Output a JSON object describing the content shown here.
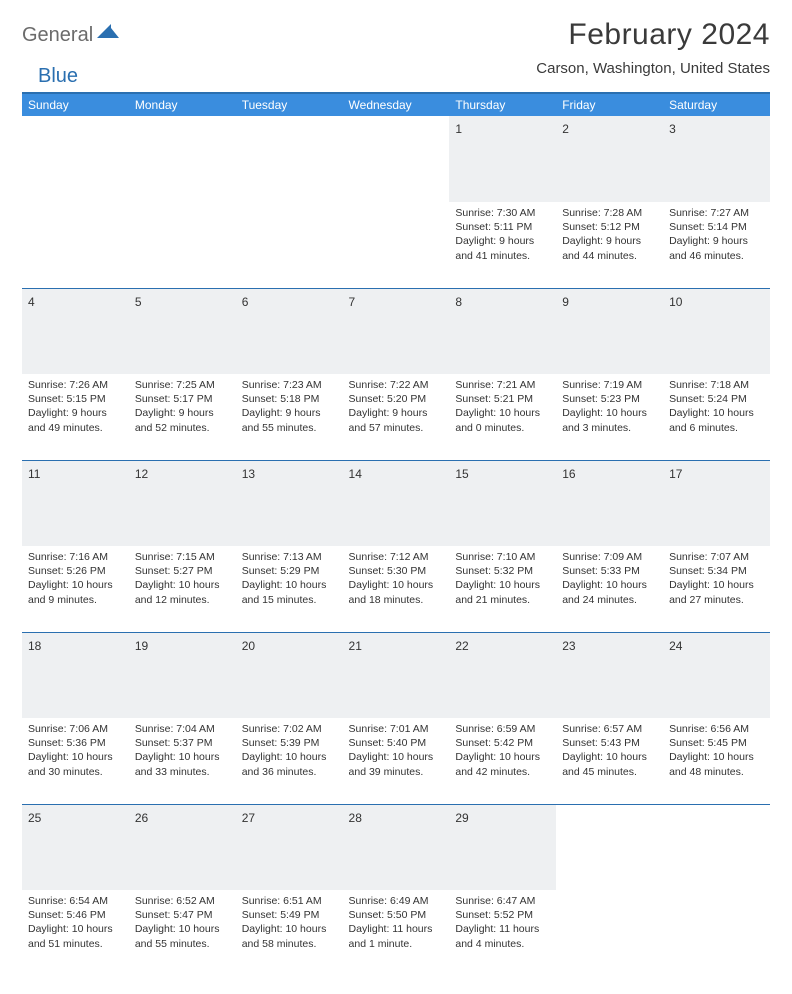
{
  "logo": {
    "general": "General",
    "blue": "Blue"
  },
  "title": "February 2024",
  "location": "Carson, Washington, United States",
  "colors": {
    "header_bg": "#3a8dde",
    "header_text": "#ffffff",
    "border": "#2a6fb0",
    "daynum_bg": "#eef0f2",
    "page_bg": "#ffffff",
    "text": "#333333",
    "logo_gray": "#6b6b6b",
    "logo_blue": "#2a6fb0"
  },
  "typography": {
    "title_fontsize": 30,
    "location_fontsize": 15,
    "header_fontsize": 12,
    "daynum_fontsize": 12,
    "body_fontsize": 10.5
  },
  "weekdays": [
    "Sunday",
    "Monday",
    "Tuesday",
    "Wednesday",
    "Thursday",
    "Friday",
    "Saturday"
  ],
  "weeks": [
    [
      null,
      null,
      null,
      null,
      {
        "n": "1",
        "sr": "Sunrise: 7:30 AM",
        "ss": "Sunset: 5:11 PM",
        "d1": "Daylight: 9 hours",
        "d2": "and 41 minutes."
      },
      {
        "n": "2",
        "sr": "Sunrise: 7:28 AM",
        "ss": "Sunset: 5:12 PM",
        "d1": "Daylight: 9 hours",
        "d2": "and 44 minutes."
      },
      {
        "n": "3",
        "sr": "Sunrise: 7:27 AM",
        "ss": "Sunset: 5:14 PM",
        "d1": "Daylight: 9 hours",
        "d2": "and 46 minutes."
      }
    ],
    [
      {
        "n": "4",
        "sr": "Sunrise: 7:26 AM",
        "ss": "Sunset: 5:15 PM",
        "d1": "Daylight: 9 hours",
        "d2": "and 49 minutes."
      },
      {
        "n": "5",
        "sr": "Sunrise: 7:25 AM",
        "ss": "Sunset: 5:17 PM",
        "d1": "Daylight: 9 hours",
        "d2": "and 52 minutes."
      },
      {
        "n": "6",
        "sr": "Sunrise: 7:23 AM",
        "ss": "Sunset: 5:18 PM",
        "d1": "Daylight: 9 hours",
        "d2": "and 55 minutes."
      },
      {
        "n": "7",
        "sr": "Sunrise: 7:22 AM",
        "ss": "Sunset: 5:20 PM",
        "d1": "Daylight: 9 hours",
        "d2": "and 57 minutes."
      },
      {
        "n": "8",
        "sr": "Sunrise: 7:21 AM",
        "ss": "Sunset: 5:21 PM",
        "d1": "Daylight: 10 hours",
        "d2": "and 0 minutes."
      },
      {
        "n": "9",
        "sr": "Sunrise: 7:19 AM",
        "ss": "Sunset: 5:23 PM",
        "d1": "Daylight: 10 hours",
        "d2": "and 3 minutes."
      },
      {
        "n": "10",
        "sr": "Sunrise: 7:18 AM",
        "ss": "Sunset: 5:24 PM",
        "d1": "Daylight: 10 hours",
        "d2": "and 6 minutes."
      }
    ],
    [
      {
        "n": "11",
        "sr": "Sunrise: 7:16 AM",
        "ss": "Sunset: 5:26 PM",
        "d1": "Daylight: 10 hours",
        "d2": "and 9 minutes."
      },
      {
        "n": "12",
        "sr": "Sunrise: 7:15 AM",
        "ss": "Sunset: 5:27 PM",
        "d1": "Daylight: 10 hours",
        "d2": "and 12 minutes."
      },
      {
        "n": "13",
        "sr": "Sunrise: 7:13 AM",
        "ss": "Sunset: 5:29 PM",
        "d1": "Daylight: 10 hours",
        "d2": "and 15 minutes."
      },
      {
        "n": "14",
        "sr": "Sunrise: 7:12 AM",
        "ss": "Sunset: 5:30 PM",
        "d1": "Daylight: 10 hours",
        "d2": "and 18 minutes."
      },
      {
        "n": "15",
        "sr": "Sunrise: 7:10 AM",
        "ss": "Sunset: 5:32 PM",
        "d1": "Daylight: 10 hours",
        "d2": "and 21 minutes."
      },
      {
        "n": "16",
        "sr": "Sunrise: 7:09 AM",
        "ss": "Sunset: 5:33 PM",
        "d1": "Daylight: 10 hours",
        "d2": "and 24 minutes."
      },
      {
        "n": "17",
        "sr": "Sunrise: 7:07 AM",
        "ss": "Sunset: 5:34 PM",
        "d1": "Daylight: 10 hours",
        "d2": "and 27 minutes."
      }
    ],
    [
      {
        "n": "18",
        "sr": "Sunrise: 7:06 AM",
        "ss": "Sunset: 5:36 PM",
        "d1": "Daylight: 10 hours",
        "d2": "and 30 minutes."
      },
      {
        "n": "19",
        "sr": "Sunrise: 7:04 AM",
        "ss": "Sunset: 5:37 PM",
        "d1": "Daylight: 10 hours",
        "d2": "and 33 minutes."
      },
      {
        "n": "20",
        "sr": "Sunrise: 7:02 AM",
        "ss": "Sunset: 5:39 PM",
        "d1": "Daylight: 10 hours",
        "d2": "and 36 minutes."
      },
      {
        "n": "21",
        "sr": "Sunrise: 7:01 AM",
        "ss": "Sunset: 5:40 PM",
        "d1": "Daylight: 10 hours",
        "d2": "and 39 minutes."
      },
      {
        "n": "22",
        "sr": "Sunrise: 6:59 AM",
        "ss": "Sunset: 5:42 PM",
        "d1": "Daylight: 10 hours",
        "d2": "and 42 minutes."
      },
      {
        "n": "23",
        "sr": "Sunrise: 6:57 AM",
        "ss": "Sunset: 5:43 PM",
        "d1": "Daylight: 10 hours",
        "d2": "and 45 minutes."
      },
      {
        "n": "24",
        "sr": "Sunrise: 6:56 AM",
        "ss": "Sunset: 5:45 PM",
        "d1": "Daylight: 10 hours",
        "d2": "and 48 minutes."
      }
    ],
    [
      {
        "n": "25",
        "sr": "Sunrise: 6:54 AM",
        "ss": "Sunset: 5:46 PM",
        "d1": "Daylight: 10 hours",
        "d2": "and 51 minutes."
      },
      {
        "n": "26",
        "sr": "Sunrise: 6:52 AM",
        "ss": "Sunset: 5:47 PM",
        "d1": "Daylight: 10 hours",
        "d2": "and 55 minutes."
      },
      {
        "n": "27",
        "sr": "Sunrise: 6:51 AM",
        "ss": "Sunset: 5:49 PM",
        "d1": "Daylight: 10 hours",
        "d2": "and 58 minutes."
      },
      {
        "n": "28",
        "sr": "Sunrise: 6:49 AM",
        "ss": "Sunset: 5:50 PM",
        "d1": "Daylight: 11 hours",
        "d2": "and 1 minute."
      },
      {
        "n": "29",
        "sr": "Sunrise: 6:47 AM",
        "ss": "Sunset: 5:52 PM",
        "d1": "Daylight: 11 hours",
        "d2": "and 4 minutes."
      },
      null,
      null
    ]
  ]
}
